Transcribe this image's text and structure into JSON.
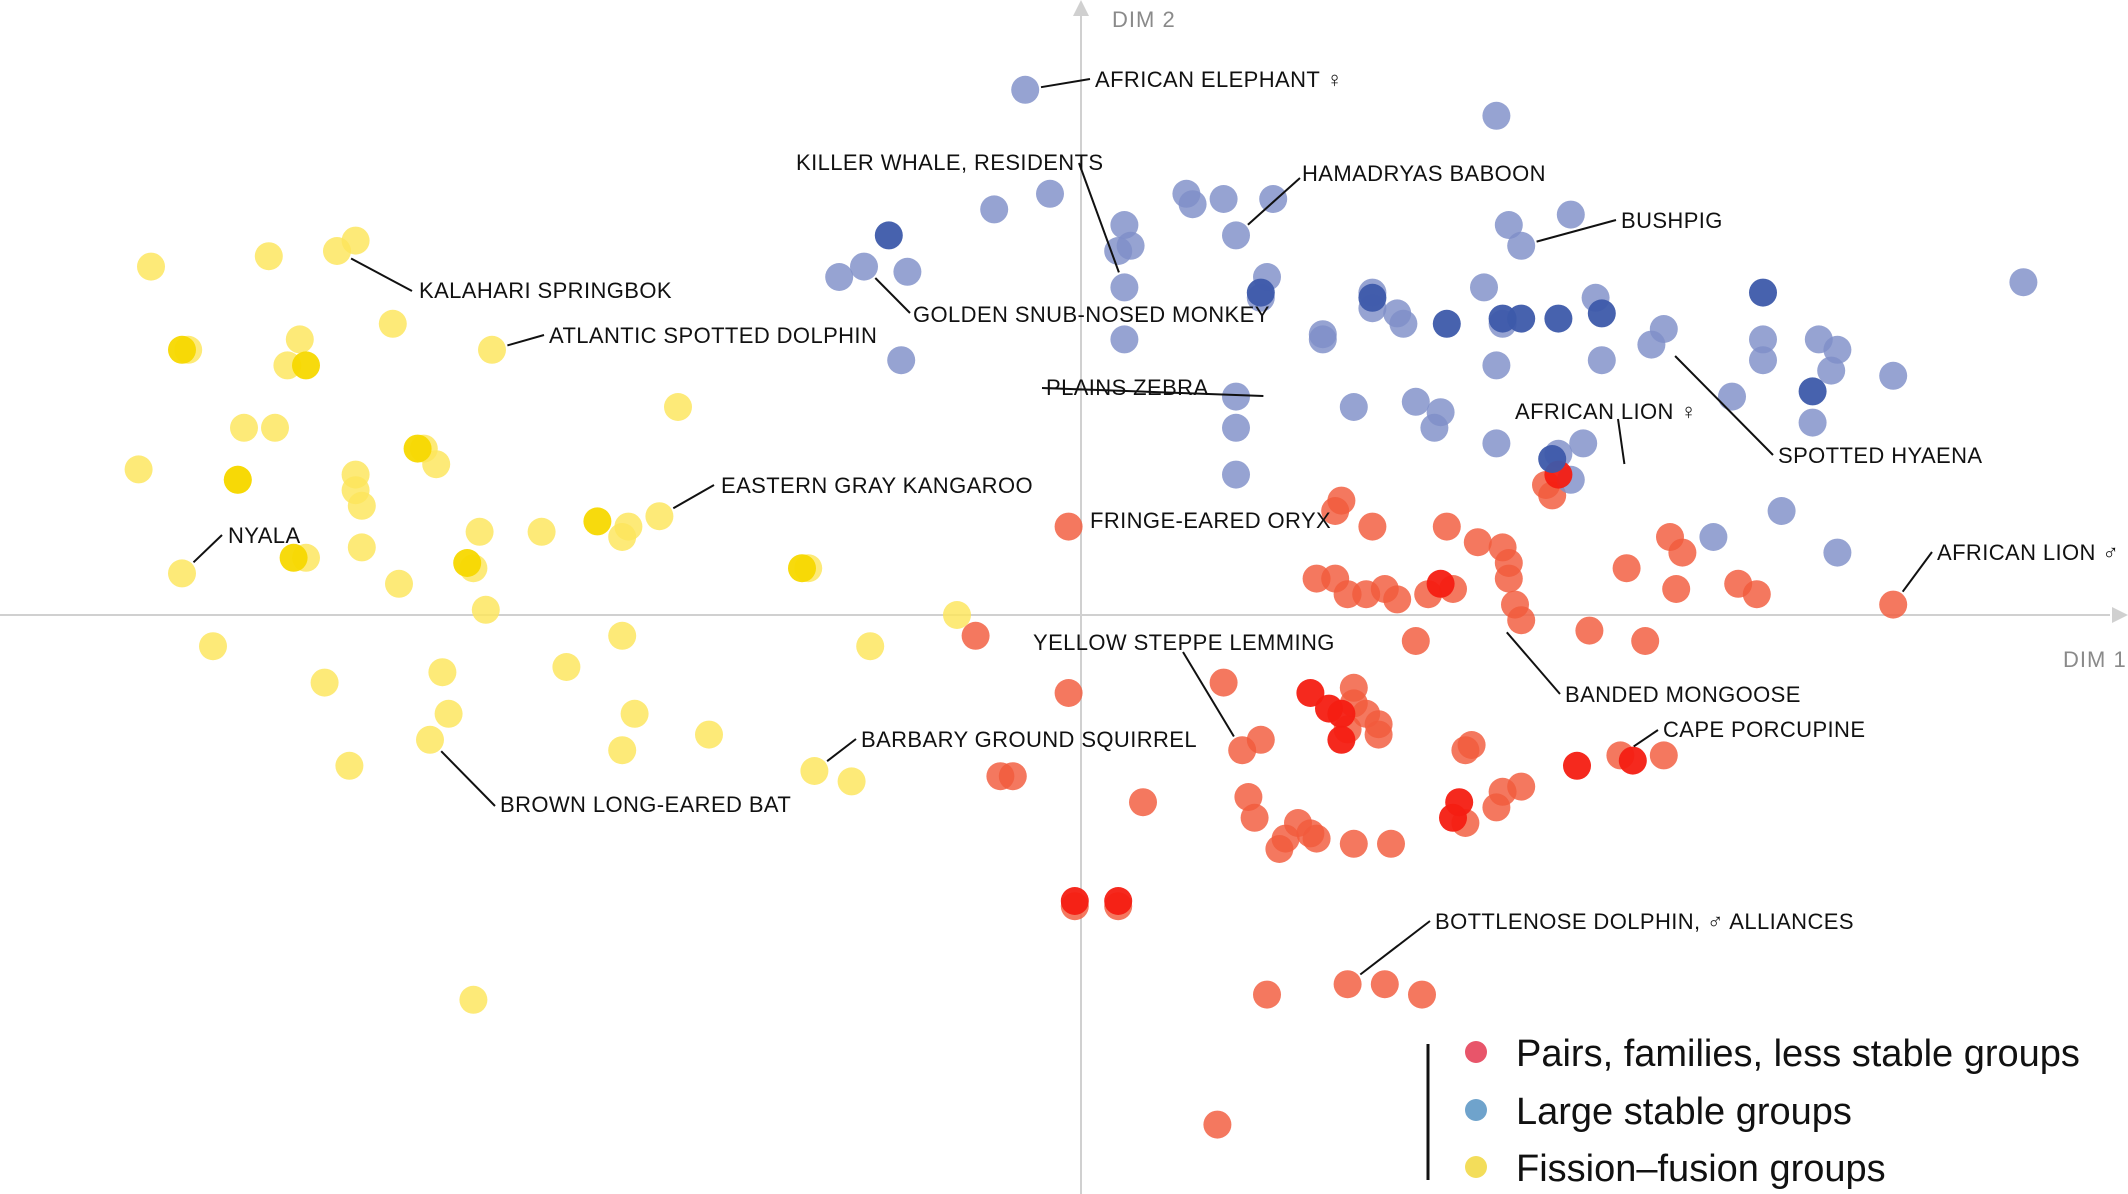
{
  "chart_data": {
    "type": "scatter",
    "title": "",
    "xlabel": "DIM 1",
    "ylabel": "DIM 2",
    "xlim": [
      -7.9,
      9.5
    ],
    "ylim": [
      -5.6,
      5.8
    ],
    "grid": false,
    "legend_position": "bottom-right",
    "series": [
      {
        "name": "Pairs, families, less stable groups",
        "color": "#f25a3c",
        "legend_color": "#e8556a",
        "points": [
          [
            -0.1,
            0.85
          ],
          [
            -0.85,
            -0.2
          ],
          [
            -0.1,
            -0.75
          ],
          [
            -0.65,
            -1.55
          ],
          [
            -0.55,
            -1.55
          ],
          [
            -0.05,
            -2.8
          ],
          [
            0.3,
            -2.8
          ],
          [
            0.5,
            -1.8
          ],
          [
            1.15,
            -0.65
          ],
          [
            1.3,
            -1.3
          ],
          [
            1.45,
            -1.2
          ],
          [
            1.35,
            -1.75
          ],
          [
            1.4,
            -1.95
          ],
          [
            1.65,
            -2.15
          ],
          [
            1.6,
            -2.25
          ],
          [
            1.75,
            -2.0
          ],
          [
            1.9,
            0.35
          ],
          [
            2.05,
            1.0
          ],
          [
            2.1,
            1.1
          ],
          [
            2.05,
            0.35
          ],
          [
            2.15,
            0.2
          ],
          [
            2.3,
            0.2
          ],
          [
            2.45,
            0.25
          ],
          [
            2.55,
            0.15
          ],
          [
            2.35,
            0.85
          ],
          [
            1.85,
            -2.1
          ],
          [
            1.9,
            -2.15
          ],
          [
            2.2,
            -0.85
          ],
          [
            2.2,
            -0.7
          ],
          [
            2.3,
            -0.95
          ],
          [
            2.4,
            -1.05
          ],
          [
            2.4,
            -1.15
          ],
          [
            2.15,
            -1.1
          ],
          [
            2.2,
            -2.2
          ],
          [
            2.5,
            -2.2
          ],
          [
            2.8,
            0.2
          ],
          [
            2.95,
            0.85
          ],
          [
            2.7,
            -0.25
          ],
          [
            3.2,
            0.7
          ],
          [
            3.4,
            0.65
          ],
          [
            3.45,
            0.5
          ],
          [
            3.45,
            0.35
          ],
          [
            3.1,
            -1.3
          ],
          [
            3.15,
            -1.25
          ],
          [
            3.4,
            -1.7
          ],
          [
            3.35,
            -1.85
          ],
          [
            3.55,
            -1.65
          ],
          [
            3.1,
            -2.0
          ],
          [
            3.0,
            0.25
          ],
          [
            3.5,
            0.1
          ],
          [
            3.55,
            -0.05
          ],
          [
            3.8,
            1.15
          ],
          [
            3.75,
            1.25
          ],
          [
            4.1,
            -0.15
          ],
          [
            4.4,
            0.45
          ],
          [
            4.55,
            -0.25
          ],
          [
            4.35,
            -1.35
          ],
          [
            4.7,
            -1.35
          ],
          [
            4.75,
            0.75
          ],
          [
            4.85,
            0.6
          ],
          [
            4.8,
            0.25
          ],
          [
            5.3,
            0.3
          ],
          [
            5.45,
            0.2
          ],
          [
            6.55,
            0.1
          ],
          [
            1.5,
            -3.65
          ],
          [
            2.15,
            -3.55
          ],
          [
            2.45,
            -3.55
          ],
          [
            2.75,
            -3.65
          ],
          [
            1.1,
            -4.9
          ]
        ]
      },
      {
        "name": "Large stable groups",
        "color": "#7f8fc8",
        "legend_color": "#6fa3cc",
        "points": [
          [
            -0.45,
            5.05
          ],
          [
            3.35,
            4.8
          ],
          [
            -0.25,
            4.05
          ],
          [
            -0.7,
            3.9
          ],
          [
            0.35,
            3.75
          ],
          [
            0.85,
            4.05
          ],
          [
            0.9,
            3.95
          ],
          [
            1.15,
            4.0
          ],
          [
            1.55,
            4.0
          ],
          [
            1.25,
            3.65
          ],
          [
            0.4,
            3.55
          ],
          [
            0.3,
            3.5
          ],
          [
            0.35,
            3.15
          ],
          [
            0.35,
            2.65
          ],
          [
            -1.4,
            3.3
          ],
          [
            -1.95,
            3.25
          ],
          [
            -1.75,
            3.35
          ],
          [
            -1.45,
            2.45
          ],
          [
            1.5,
            3.25
          ],
          [
            1.45,
            3.05
          ],
          [
            1.95,
            2.7
          ],
          [
            1.95,
            2.65
          ],
          [
            2.35,
            3.1
          ],
          [
            2.35,
            2.95
          ],
          [
            2.55,
            2.9
          ],
          [
            2.6,
            2.8
          ],
          [
            3.25,
            3.15
          ],
          [
            3.4,
            2.8
          ],
          [
            3.35,
            2.4
          ],
          [
            3.45,
            3.75
          ],
          [
            3.55,
            3.55
          ],
          [
            3.95,
            3.85
          ],
          [
            4.2,
            2.45
          ],
          [
            4.15,
            3.05
          ],
          [
            4.6,
            2.6
          ],
          [
            4.7,
            2.75
          ],
          [
            1.25,
            2.1
          ],
          [
            1.25,
            1.8
          ],
          [
            1.25,
            1.35
          ],
          [
            2.2,
            2.0
          ],
          [
            2.7,
            2.05
          ],
          [
            2.9,
            1.95
          ],
          [
            2.85,
            1.8
          ],
          [
            3.35,
            1.65
          ],
          [
            4.05,
            1.65
          ],
          [
            3.85,
            1.55
          ],
          [
            3.95,
            1.3
          ],
          [
            5.25,
            2.1
          ],
          [
            5.5,
            2.45
          ],
          [
            5.5,
            2.65
          ],
          [
            5.95,
            2.65
          ],
          [
            6.1,
            2.55
          ],
          [
            6.05,
            2.35
          ],
          [
            6.55,
            2.3
          ],
          [
            5.9,
            1.85
          ],
          [
            5.65,
            1.0
          ],
          [
            5.1,
            0.75
          ],
          [
            6.1,
            0.6
          ],
          [
            7.6,
            3.2
          ]
        ]
      },
      {
        "name": "Fission–fusion groups",
        "color": "#fde55a",
        "legend_color": "#f3dd5a",
        "points": [
          [
            -7.5,
            3.35
          ],
          [
            -6.55,
            3.45
          ],
          [
            -6.0,
            3.5
          ],
          [
            -5.85,
            3.6
          ],
          [
            -5.55,
            2.8
          ],
          [
            -6.3,
            2.65
          ],
          [
            -7.2,
            2.55
          ],
          [
            -6.4,
            2.4
          ],
          [
            -4.75,
            2.55
          ],
          [
            -3.25,
            2.0
          ],
          [
            -6.75,
            1.8
          ],
          [
            -6.5,
            1.8
          ],
          [
            -5.3,
            1.6
          ],
          [
            -5.2,
            1.45
          ],
          [
            -5.85,
            1.35
          ],
          [
            -5.85,
            1.2
          ],
          [
            -6.8,
            1.3
          ],
          [
            -7.6,
            1.4
          ],
          [
            -5.8,
            1.05
          ],
          [
            -3.4,
            0.95
          ],
          [
            -3.65,
            0.85
          ],
          [
            -3.7,
            0.75
          ],
          [
            -4.35,
            0.8
          ],
          [
            -4.85,
            0.8
          ],
          [
            -5.8,
            0.65
          ],
          [
            -5.5,
            0.3
          ],
          [
            -6.25,
            0.55
          ],
          [
            -4.9,
            0.45
          ],
          [
            -7.25,
            0.4
          ],
          [
            -2.2,
            0.45
          ],
          [
            -4.8,
            0.05
          ],
          [
            -3.7,
            -0.2
          ],
          [
            -1.0,
            0.0
          ],
          [
            -7.0,
            -0.3
          ],
          [
            -1.7,
            -0.3
          ],
          [
            -6.1,
            -0.65
          ],
          [
            -5.15,
            -0.55
          ],
          [
            -4.15,
            -0.5
          ],
          [
            -5.1,
            -0.95
          ],
          [
            -3.6,
            -0.95
          ],
          [
            -3.0,
            -1.15
          ],
          [
            -5.25,
            -1.2
          ],
          [
            -3.7,
            -1.3
          ],
          [
            -5.9,
            -1.45
          ],
          [
            -2.15,
            -1.5
          ],
          [
            -1.85,
            -1.6
          ],
          [
            -4.9,
            -3.7
          ]
        ]
      },
      {
        "name": "",
        "color": "#f41d12",
        "points": [
          [
            -0.05,
            -2.75
          ],
          [
            0.3,
            -2.75
          ],
          [
            1.85,
            -0.75
          ],
          [
            2.0,
            -0.9
          ],
          [
            2.1,
            -0.95
          ],
          [
            2.1,
            -1.2
          ],
          [
            2.9,
            0.3
          ],
          [
            3.0,
            -1.95
          ],
          [
            3.05,
            -1.8
          ],
          [
            3.85,
            1.35
          ],
          [
            4.0,
            -1.45
          ],
          [
            4.45,
            -1.4
          ]
        ]
      },
      {
        "name": "",
        "color": "#3d5aaa",
        "points": [
          [
            -1.55,
            3.65
          ],
          [
            1.45,
            3.1
          ],
          [
            2.35,
            3.05
          ],
          [
            2.95,
            2.8
          ],
          [
            3.4,
            2.85
          ],
          [
            3.55,
            2.85
          ],
          [
            3.85,
            2.85
          ],
          [
            4.2,
            2.9
          ],
          [
            5.5,
            3.1
          ],
          [
            5.9,
            2.15
          ],
          [
            3.8,
            1.5
          ]
        ]
      },
      {
        "name": "",
        "color": "#f7d800",
        "points": [
          [
            -7.25,
            2.55
          ],
          [
            -6.25,
            2.4
          ],
          [
            -5.35,
            1.6
          ],
          [
            -6.8,
            1.3
          ],
          [
            -3.9,
            0.9
          ],
          [
            -6.35,
            0.55
          ],
          [
            -4.95,
            0.5
          ],
          [
            -2.25,
            0.45
          ]
        ]
      }
    ],
    "annotations": [
      {
        "text": "AFRICAN ELEPHANT ♀",
        "point": [
          -0.45,
          5.05
        ]
      },
      {
        "text": "KILLER WHALE, RESIDENTS",
        "point": [
          0.35,
          3.15
        ]
      },
      {
        "text": "HAMADRYAS BABOON",
        "point": [
          1.25,
          3.65
        ]
      },
      {
        "text": "BUSHPIG",
        "point": [
          3.55,
          3.55
        ]
      },
      {
        "text": "KALAHARI SPRINGBOK",
        "point": [
          -6.0,
          3.5
        ]
      },
      {
        "text": "GOLDEN SNUB-NOSED MONKEY",
        "point": [
          -1.75,
          3.35
        ]
      },
      {
        "text": "ATLANTIC SPOTTED DOLPHIN",
        "point": [
          -4.75,
          2.55
        ]
      },
      {
        "text": "PLAINS ZEBRA",
        "point": [
          1.6,
          2.1
        ]
      },
      {
        "text": "AFRICAN LION ♀",
        "point": [
          4.4,
          1.3
        ]
      },
      {
        "text": "SPOTTED HYAENA",
        "point": [
          4.7,
          2.6
        ]
      },
      {
        "text": "EASTERN GRAY KANGAROO",
        "point": [
          -3.4,
          0.95
        ]
      },
      {
        "text": "FRINGE-EARED ORYX",
        "point": [
          -0.1,
          0.85
        ]
      },
      {
        "text": "NYALA",
        "point": [
          -7.25,
          0.4
        ]
      },
      {
        "text": "AFRICAN LION ♂",
        "point": [
          6.55,
          0.1
        ]
      },
      {
        "text": "YELLOW STEPPE LEMMING",
        "point": [
          1.3,
          -1.3
        ]
      },
      {
        "text": "BANDED MONGOOSE",
        "point": [
          3.35,
          -0.05
        ]
      },
      {
        "text": "CAPE PORCUPINE",
        "point": [
          4.35,
          -1.35
        ]
      },
      {
        "text": "BARBARY GROUND SQUIRREL",
        "point": [
          -2.15,
          -1.5
        ]
      },
      {
        "text": "BROWN LONG-EARED BAT",
        "point": [
          -5.25,
          -1.2
        ]
      },
      {
        "text": "BOTTLENOSE DOLPHIN, ♂ ALLIANCES",
        "point": [
          2.15,
          -3.55
        ]
      }
    ]
  }
}
